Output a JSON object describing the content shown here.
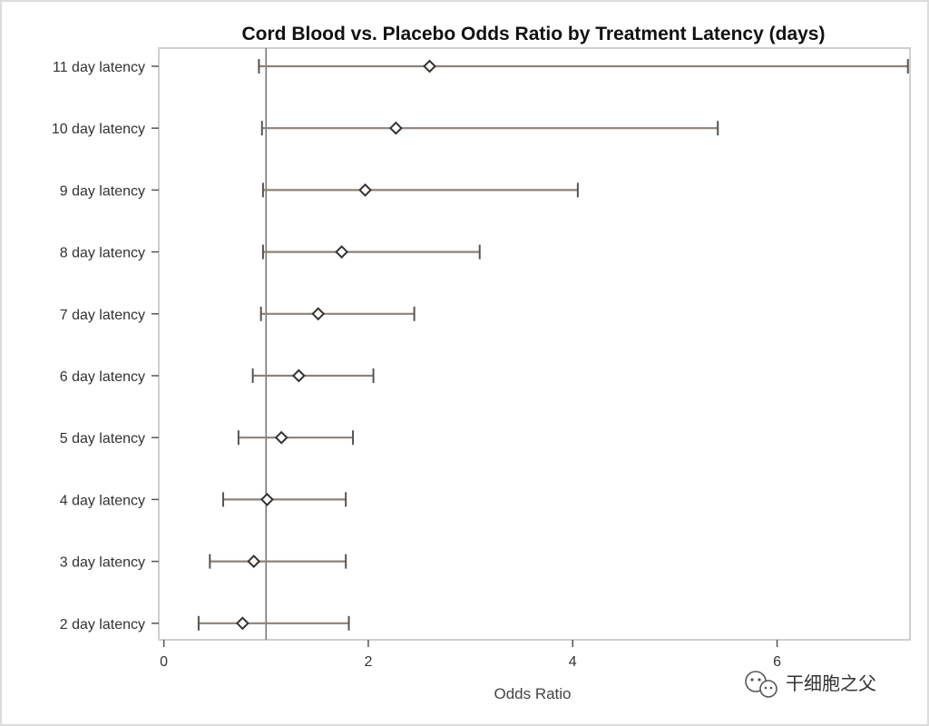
{
  "chart_data": {
    "type": "forest",
    "title": "Cord Blood vs. Placebo Odds Ratio by Treatment Latency (days)",
    "xlabel": "Odds Ratio",
    "ylabel": "",
    "xlim": [
      -0.05,
      7.3
    ],
    "x_ticks": [
      0,
      2,
      4,
      6
    ],
    "x_tick_labels": [
      "0",
      "2",
      "4",
      "6"
    ],
    "reference_line_x": 1,
    "grid": false,
    "categories": [
      "11 day latency",
      "10 day latency",
      "9 day latency",
      "8 day latency",
      "7 day latency",
      "6 day latency",
      "5 day latency",
      "4 day latency",
      "3 day latency",
      "2 day latency"
    ],
    "estimates": [
      2.6,
      2.27,
      1.97,
      1.74,
      1.51,
      1.32,
      1.15,
      1.01,
      0.88,
      0.77
    ],
    "lower": [
      0.93,
      0.96,
      0.97,
      0.97,
      0.95,
      0.87,
      0.73,
      0.58,
      0.45,
      0.34
    ],
    "upper": [
      7.28,
      5.42,
      4.05,
      3.09,
      2.45,
      2.05,
      1.85,
      1.78,
      1.78,
      1.81
    ],
    "colors": {
      "interval": "#8c8278",
      "marker": "#333333",
      "frame": "#cfcfcf",
      "reference": "#777777"
    }
  },
  "watermark": {
    "icon": "wechat-icon",
    "text": "干细胞之父"
  }
}
